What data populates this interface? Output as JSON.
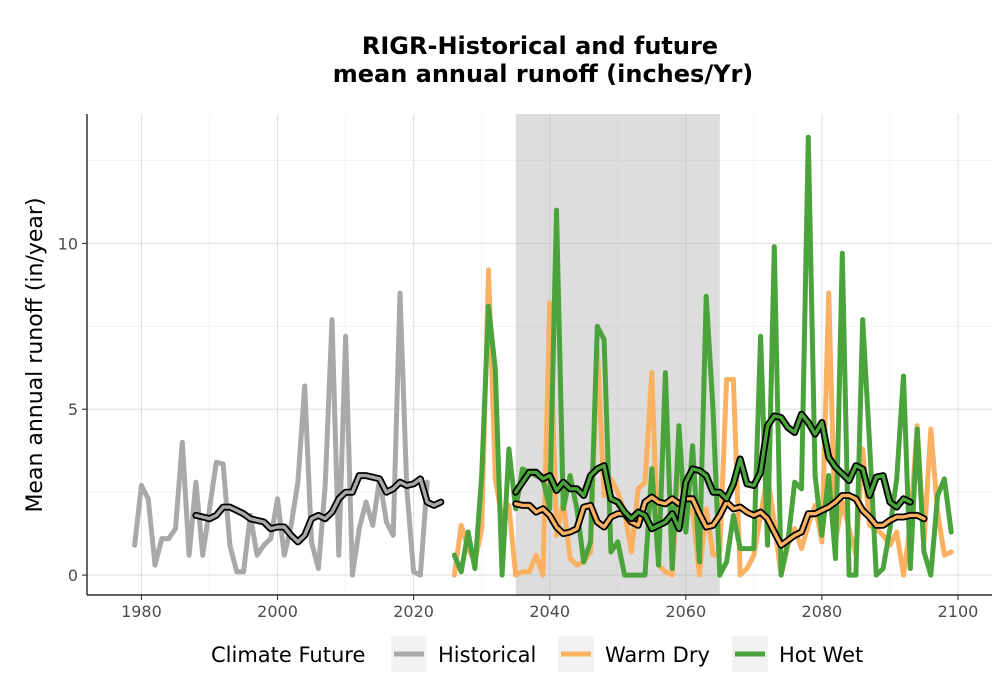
{
  "chart_data": {
    "type": "line",
    "title_line1": "RIGR-Historical and future",
    "title_line2": "mean annual runoff (inches/Yr)",
    "xlabel": "",
    "ylabel": "Mean annual runoff (in/year)",
    "xlim": [
      1972,
      2105
    ],
    "ylim": [
      -0.6,
      13.9
    ],
    "x_ticks": [
      1980,
      2000,
      2020,
      2040,
      2060,
      2080,
      2100
    ],
    "y_ticks": [
      0,
      5,
      10
    ],
    "grid": true,
    "shaded_period": [
      2035,
      2065
    ],
    "legend": {
      "title": "Climate Future",
      "position": "bottom",
      "entries": [
        "Historical",
        "Warm Dry",
        "Hot Wet"
      ]
    },
    "series": [
      {
        "name": "Historical",
        "color": "#a9a9a9",
        "x": [
          1979,
          1980,
          1981,
          1982,
          1983,
          1984,
          1985,
          1986,
          1987,
          1988,
          1989,
          1990,
          1991,
          1992,
          1993,
          1994,
          1995,
          1996,
          1997,
          1998,
          1999,
          2000,
          2001,
          2002,
          2003,
          2004,
          2005,
          2006,
          2007,
          2008,
          2009,
          2010,
          2011,
          2012,
          2013,
          2014,
          2015,
          2016,
          2017,
          2018,
          2019,
          2020,
          2021,
          2022
        ],
        "values": [
          0.9,
          2.7,
          2.3,
          0.3,
          1.1,
          1.1,
          1.4,
          4.0,
          0.6,
          2.8,
          0.6,
          2.0,
          3.4,
          3.35,
          0.9,
          0.1,
          0.1,
          1.8,
          0.6,
          0.9,
          1.1,
          2.3,
          0.6,
          1.5,
          2.8,
          5.7,
          1.0,
          0.2,
          2.7,
          7.7,
          0.6,
          7.2,
          0.0,
          1.4,
          2.2,
          1.5,
          2.9,
          1.6,
          1.2,
          8.5,
          2.6,
          0.1,
          0.0,
          2.8
        ],
        "rolling": [
          1.8,
          1.75,
          1.7,
          1.8,
          2.05,
          2.05,
          1.95,
          1.85,
          1.7,
          1.65,
          1.6,
          1.4,
          1.45,
          1.45,
          1.2,
          1.0,
          1.2,
          1.7,
          1.8,
          1.7,
          1.9,
          2.3,
          2.5,
          2.5,
          3.0,
          3.0,
          2.95,
          2.9,
          2.5,
          2.6,
          2.8,
          2.7,
          2.75,
          2.9,
          2.2,
          2.1,
          2.2
        ],
        "rolling_start": 1988
      },
      {
        "name": "Warm Dry",
        "color": "#fbb162",
        "x": [
          2026,
          2027,
          2028,
          2029,
          2030,
          2031,
          2032,
          2033,
          2034,
          2035,
          2036,
          2037,
          2038,
          2039,
          2040,
          2041,
          2042,
          2043,
          2044,
          2045,
          2046,
          2047,
          2048,
          2049,
          2050,
          2051,
          2052,
          2053,
          2054,
          2055,
          2056,
          2057,
          2058,
          2059,
          2060,
          2061,
          2062,
          2063,
          2064,
          2065,
          2066,
          2067,
          2068,
          2069,
          2070,
          2071,
          2072,
          2073,
          2074,
          2075,
          2076,
          2077,
          2078,
          2079,
          2080,
          2081,
          2082,
          2083,
          2084,
          2085,
          2086,
          2087,
          2088,
          2089,
          2090,
          2091,
          2092,
          2093,
          2094,
          2095,
          2096,
          2097,
          2098,
          2099
        ],
        "values": [
          0.0,
          1.5,
          0.8,
          0.4,
          1.4,
          9.2,
          2.9,
          1.7,
          2.1,
          0.0,
          0.1,
          0.1,
          0.6,
          0.0,
          8.2,
          1.2,
          2.2,
          0.5,
          0.3,
          0.4,
          0.7,
          6.8,
          2.4,
          2.9,
          2.5,
          1.9,
          0.7,
          2.6,
          2.8,
          6.1,
          0.3,
          0.1,
          0.0,
          3.6,
          1.8,
          2.0,
          0.0,
          2.0,
          0.6,
          0.7,
          5.9,
          5.9,
          0.0,
          0.2,
          0.6,
          1.8,
          3.0,
          1.6,
          0.0,
          0.9,
          1.4,
          0.8,
          1.5,
          2.1,
          1.0,
          8.5,
          1.0,
          2.2,
          1.4,
          0.6,
          3.8,
          1.5,
          1.4,
          1.2,
          0.9,
          1.3,
          0.0,
          1.5,
          4.5,
          1.0,
          4.4,
          1.9,
          0.6,
          0.7
        ],
        "rolling": [
          2.15,
          2.1,
          2.1,
          1.9,
          2.0,
          1.8,
          1.45,
          1.25,
          1.3,
          1.4,
          2.05,
          2.1,
          1.6,
          1.45,
          1.75,
          1.85,
          1.85,
          1.6,
          1.5,
          2.2,
          2.35,
          2.2,
          2.15,
          2.3,
          2.15,
          2.3,
          2.3,
          1.85,
          1.45,
          1.5,
          1.8,
          2.2,
          2.0,
          2.05,
          1.9,
          1.8,
          1.9,
          1.7,
          1.3,
          0.9,
          1.05,
          1.2,
          1.3,
          1.85,
          1.85,
          1.95,
          2.05,
          2.2,
          2.4,
          2.4,
          2.3,
          1.95,
          1.75,
          1.5,
          1.5,
          1.65,
          1.75,
          1.75,
          1.8,
          1.8,
          1.7
        ],
        "rolling_start": 2035
      },
      {
        "name": "Hot Wet",
        "color": "#4aa43b",
        "x": [
          2026,
          2027,
          2028,
          2029,
          2030,
          2031,
          2032,
          2033,
          2034,
          2035,
          2036,
          2037,
          2038,
          2039,
          2040,
          2041,
          2042,
          2043,
          2044,
          2045,
          2046,
          2047,
          2048,
          2049,
          2050,
          2051,
          2052,
          2053,
          2054,
          2055,
          2056,
          2057,
          2058,
          2059,
          2060,
          2061,
          2062,
          2063,
          2064,
          2065,
          2066,
          2067,
          2068,
          2069,
          2070,
          2071,
          2072,
          2073,
          2074,
          2075,
          2076,
          2077,
          2078,
          2079,
          2080,
          2081,
          2082,
          2083,
          2084,
          2085,
          2086,
          2087,
          2088,
          2089,
          2090,
          2091,
          2092,
          2093,
          2094,
          2095,
          2096,
          2097,
          2098,
          2099
        ],
        "values": [
          0.6,
          0.1,
          1.3,
          0.2,
          3.0,
          8.1,
          6.2,
          0.0,
          3.8,
          2.0,
          3.2,
          3.1,
          3.0,
          2.9,
          2.0,
          11.0,
          2.0,
          3.0,
          2.0,
          0.4,
          1.0,
          7.5,
          7.1,
          0.7,
          1.0,
          0.0,
          0.0,
          0.0,
          0.0,
          3.2,
          0.3,
          6.1,
          0.2,
          4.5,
          1.3,
          3.9,
          0.4,
          8.4,
          5.0,
          0.0,
          0.4,
          1.8,
          0.8,
          0.8,
          0.8,
          7.2,
          0.9,
          9.9,
          0.0,
          1.0,
          2.8,
          2.6,
          13.2,
          3.0,
          1.2,
          3.0,
          0.5,
          9.7,
          0.0,
          0.0,
          7.7,
          4.0,
          0.0,
          0.2,
          1.4,
          2.9,
          6.0,
          0.2,
          4.4,
          0.7,
          0.0,
          2.4,
          2.9,
          1.3
        ],
        "rolling": [
          2.5,
          2.8,
          3.1,
          3.1,
          2.9,
          3.0,
          2.55,
          2.8,
          2.6,
          2.6,
          2.4,
          3.0,
          3.2,
          3.3,
          2.3,
          2.2,
          1.9,
          1.7,
          1.9,
          1.8,
          1.4,
          1.5,
          1.6,
          1.85,
          1.4,
          2.8,
          3.2,
          3.15,
          3.0,
          2.5,
          2.5,
          2.3,
          2.75,
          3.5,
          2.75,
          2.7,
          3.1,
          4.5,
          4.8,
          4.75,
          4.45,
          4.3,
          4.85,
          4.6,
          4.25,
          4.6,
          3.55,
          3.25,
          3.05,
          2.85,
          3.3,
          3.2,
          2.4,
          2.95,
          3.0,
          2.2,
          2.05,
          2.3,
          2.2
        ],
        "rolling_start": 2035
      }
    ]
  }
}
